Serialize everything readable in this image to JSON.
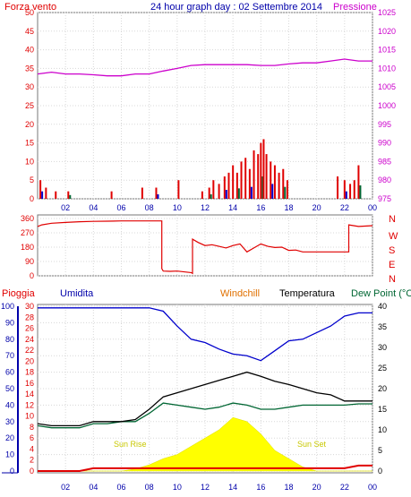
{
  "header": {
    "left_label": "Forza vento",
    "title": "24 hour graph day : 02 Settembre 2014",
    "right_label": "Pressione"
  },
  "colors": {
    "red": "#e00000",
    "magenta": "#cc00cc",
    "navy": "#0000aa",
    "blue": "#0000cc",
    "orange": "#e07000",
    "green": "#006633",
    "yellow": "#ffff00",
    "black": "#000000"
  },
  "chart_data": [
    {
      "type": "bar+line",
      "name": "wind-pressure",
      "title": "24 hour graph day : 02 Settembre 2014",
      "left_axis": {
        "label": "Forza vento",
        "ylim": [
          0,
          50
        ],
        "ticks": [
          "0",
          "5",
          "10",
          "15",
          "20",
          "25",
          "30",
          "35",
          "40",
          "45",
          "50"
        ]
      },
      "right_axis": {
        "label": "Pressione",
        "ylim": [
          975,
          1025
        ],
        "ticks": [
          "975",
          "980",
          "985",
          "990",
          "995",
          "1000",
          "1005",
          "1010",
          "1015",
          "1020",
          "1025"
        ]
      },
      "x_ticks": [
        "02",
        "04",
        "06",
        "08",
        "10",
        "12",
        "14",
        "16",
        "18",
        "20",
        "22",
        "00"
      ],
      "pressure_x": [
        0,
        1,
        2,
        3,
        4,
        5,
        6,
        7,
        8,
        9,
        10,
        11,
        12,
        13,
        14,
        15,
        16,
        17,
        18,
        19,
        20,
        21,
        22,
        23,
        24
      ],
      "pressure_y": [
        1008.5,
        1009,
        1008.5,
        1008.5,
        1008.3,
        1008,
        1008,
        1008.5,
        1008.5,
        1009.3,
        1010,
        1010.8,
        1011,
        1011,
        1011,
        1011,
        1010.8,
        1010.8,
        1011.2,
        1011.5,
        1011.5,
        1012,
        1012.5,
        1012,
        1012
      ],
      "wind_x": [
        0.2,
        0.6,
        1.3,
        2.2,
        5.3,
        7.5,
        8.5,
        10.1,
        11.8,
        12.3,
        12.6,
        13.0,
        13.4,
        13.7,
        14.0,
        14.3,
        14.6,
        14.9,
        15.2,
        15.5,
        15.8,
        16.0,
        16.2,
        16.4,
        16.7,
        17.0,
        17.3,
        17.6,
        17.9,
        21.5,
        22.0,
        22.4,
        22.7,
        23.0
      ],
      "wind_y": [
        5,
        3,
        2,
        2,
        2,
        3,
        3,
        5,
        2,
        3,
        5,
        4,
        6,
        7,
        9,
        7,
        10,
        11,
        8,
        13,
        12,
        15,
        16,
        12,
        10,
        9,
        7,
        8,
        5,
        6,
        5,
        4,
        5,
        9
      ],
      "gust_note": "red bars = wind, blue/green overlay bars = lower values"
    },
    {
      "type": "line",
      "name": "wind-direction",
      "left_axis": {
        "ylim": [
          0,
          360
        ],
        "ticks": [
          "0",
          "90",
          "180",
          "270",
          "360"
        ]
      },
      "right_labels": [
        "N",
        "W",
        "S",
        "E",
        "N"
      ],
      "x": [
        0,
        0.3,
        1,
        2,
        3,
        4,
        5,
        6,
        7,
        8,
        8.9,
        8.9,
        9,
        9.5,
        10,
        11,
        11.1,
        11.1,
        11.5,
        12,
        12.5,
        13,
        13.5,
        14,
        14.5,
        15,
        15.5,
        16,
        16.5,
        17,
        17.5,
        18,
        18.5,
        19,
        20,
        21,
        22,
        22.3,
        22.3,
        23,
        24
      ],
      "y": [
        310,
        320,
        330,
        335,
        340,
        342,
        343,
        345,
        345,
        345,
        345,
        45,
        30,
        28,
        30,
        20,
        15,
        230,
        210,
        190,
        195,
        185,
        175,
        190,
        200,
        150,
        175,
        200,
        185,
        178,
        180,
        160,
        162,
        150,
        150,
        150,
        150,
        150,
        320,
        310,
        315
      ]
    },
    {
      "type": "line+area",
      "name": "humidity-temperature",
      "left_labels": [
        "Pioggia",
        "Umidita"
      ],
      "right_labels": [
        "Windchill",
        "Temperatura",
        "Dew Point (°C"
      ],
      "rain_axis": {
        "ylim": [
          0,
          30
        ],
        "ticks": [
          "0",
          "2",
          "4",
          "6",
          "8",
          "10",
          "12",
          "14",
          "16",
          "18",
          "20",
          "22",
          "24",
          "26",
          "28",
          "30"
        ]
      },
      "humidity_axis": {
        "ylim": [
          0,
          100
        ],
        "ticks": [
          "0",
          "10",
          "20",
          "30",
          "40",
          "50",
          "60",
          "70",
          "80",
          "90",
          "100"
        ]
      },
      "temp_axis": {
        "ylim": [
          0,
          40
        ],
        "ticks": [
          "0",
          "5",
          "10",
          "15",
          "20",
          "25",
          "30",
          "35",
          "40"
        ]
      },
      "x_ticks": [
        "02",
        "04",
        "06",
        "08",
        "10",
        "12",
        "14",
        "16",
        "18",
        "20",
        "22",
        "00"
      ],
      "sun_labels": {
        "rise": "Sun Rise",
        "set": "Sun Set"
      },
      "x_extra_label": "Sun Set",
      "hours": [
        0,
        1,
        2,
        3,
        4,
        5,
        6,
        7,
        8,
        9,
        10,
        11,
        12,
        13,
        14,
        15,
        16,
        17,
        18,
        19,
        20,
        21,
        22,
        23,
        24
      ],
      "humidity": [
        99,
        99,
        99,
        99,
        99,
        99,
        99,
        99,
        99,
        97,
        88,
        80,
        78,
        74,
        71,
        70,
        67,
        73,
        79,
        80,
        84,
        88,
        94,
        96,
        96
      ],
      "temperature": [
        11.5,
        11,
        11,
        11,
        12,
        12,
        12,
        12.5,
        15,
        18,
        19,
        20,
        21,
        22,
        23,
        24,
        23,
        21.8,
        21,
        20,
        19,
        18.5,
        17,
        17,
        17
      ],
      "dew_point": [
        11,
        10.5,
        10.5,
        10.5,
        11.5,
        11.5,
        12,
        12,
        14,
        16.5,
        16,
        15.5,
        15,
        15.5,
        16.5,
        16,
        15,
        15,
        15.5,
        16,
        16,
        16,
        16,
        16.3,
        16.3
      ],
      "solar": [
        0,
        0,
        0,
        0,
        0,
        0,
        0,
        0.5,
        1.5,
        3,
        4,
        6,
        8,
        10,
        13,
        12,
        9,
        5,
        3,
        1,
        0,
        0,
        0,
        0,
        0
      ],
      "rain": [
        0,
        0,
        0,
        0,
        0.5,
        0.5,
        0.5,
        0.5,
        0.5,
        0.5,
        0.5,
        0.5,
        0.5,
        0.5,
        0.5,
        0.5,
        0.5,
        0.5,
        0.5,
        0.5,
        0.5,
        0.5,
        0.5,
        1,
        1
      ]
    }
  ]
}
